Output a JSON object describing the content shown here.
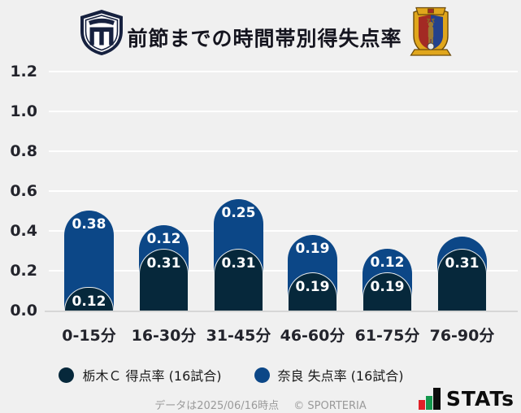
{
  "header": {
    "title": "前節までの時間帯別得失点率",
    "home_team_crest": "tochigi-city-crest",
    "away_team_crest": "nara-club-crest"
  },
  "chart_data": {
    "type": "bar",
    "stacked": true,
    "title": "前節までの時間帯別得失点率",
    "categories": [
      "0-15分",
      "16-30分",
      "31-45分",
      "46-60分",
      "61-75分",
      "76-90分"
    ],
    "series": [
      {
        "name": "栃木Ｃ 得点率 (16試合)",
        "color": "#06283b",
        "values": [
          0.12,
          0.31,
          0.31,
          0.19,
          0.19,
          0.31
        ],
        "labels": [
          "0.12",
          "0.31",
          "0.31",
          "0.19",
          "0.19",
          "0.31"
        ]
      },
      {
        "name": "奈良 失点率 (16試合)",
        "color": "#0c4787",
        "values": [
          0.38,
          0.12,
          0.25,
          0.19,
          0.12,
          0.06
        ],
        "labels": [
          "0.38",
          "0.12",
          "0.25",
          "0.19",
          "0.12",
          ""
        ]
      }
    ],
    "ylim": [
      0,
      1.2
    ],
    "yticks": [
      "1.2",
      "1.0",
      "0.8",
      "0.6",
      "0.4",
      "0.2",
      "0.0"
    ],
    "grid": true,
    "legend_position": "bottom",
    "background": "#f0f0f0",
    "gridline_color": "#ffffff"
  },
  "legend": [
    {
      "label": "栃木Ｃ 得点率 (16試合)",
      "color": "#06283b"
    },
    {
      "label": "奈良 失点率 (16試合)",
      "color": "#0c4787"
    }
  ],
  "footer": {
    "note": "データは2025/06/16時点",
    "copyright": "© SPORTERIA",
    "brand": "STATs"
  }
}
